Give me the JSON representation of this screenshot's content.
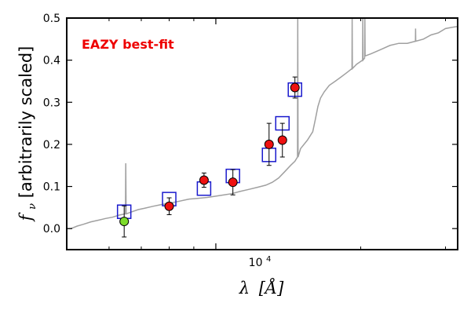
{
  "chart_data": {
    "type": "scatter",
    "annotation": {
      "text": "EAZY best-fit",
      "color": "#ee0000"
    },
    "xlabel": {
      "lambda": "λ",
      "unit": "[Å]"
    },
    "ylabel": {
      "f": "f",
      "sub": "ν",
      "rest": " [arbitrarily scaled]"
    },
    "x_scale": "log",
    "xlim": [
      4900,
      31800
    ],
    "ylim": [
      -0.05,
      0.5
    ],
    "y_ticks": [
      0.0,
      0.1,
      0.2,
      0.3,
      0.4,
      0.5
    ],
    "y_tick_labels": [
      "0.0",
      "0.1",
      "0.2",
      "0.3",
      "0.4",
      "0.5"
    ],
    "x_major_tick_label": {
      "base": "10",
      "exp": "4"
    },
    "x_major_tick": 10000,
    "x_minor_ticks": [
      6000,
      7000,
      8000,
      9000,
      20000,
      30000
    ],
    "grid": false,
    "colors": {
      "sed": "#a0a0a0",
      "model_box": "#1a1acd",
      "detection": "#ee1111",
      "low_sn": "#7ddc2a",
      "errorbar": "#000000"
    },
    "series": [
      {
        "type": "line",
        "color": "#a0a0a0",
        "points": [
          [
            4900,
            0.0
          ],
          [
            5000,
            0.0
          ],
          [
            5150,
            0.006
          ],
          [
            5300,
            0.01
          ],
          [
            5500,
            0.016
          ],
          [
            5700,
            0.02
          ],
          [
            5900,
            0.024
          ],
          [
            6100,
            0.027
          ],
          [
            6300,
            0.032
          ],
          [
            6490,
            0.035
          ],
          [
            6500,
            0.155
          ],
          [
            6510,
            0.035
          ],
          [
            6700,
            0.04
          ],
          [
            6900,
            0.045
          ],
          [
            7100,
            0.048
          ],
          [
            7400,
            0.053
          ],
          [
            7700,
            0.057
          ],
          [
            8000,
            0.06
          ],
          [
            8400,
            0.065
          ],
          [
            8800,
            0.07
          ],
          [
            9200,
            0.072
          ],
          [
            9600,
            0.074
          ],
          [
            10000,
            0.077
          ],
          [
            10400,
            0.08
          ],
          [
            10800,
            0.083
          ],
          [
            11200,
            0.088
          ],
          [
            11700,
            0.093
          ],
          [
            12200,
            0.098
          ],
          [
            12700,
            0.103
          ],
          [
            13100,
            0.11
          ],
          [
            13500,
            0.12
          ],
          [
            13900,
            0.135
          ],
          [
            14300,
            0.15
          ],
          [
            14600,
            0.16
          ],
          [
            14780,
            0.17
          ],
          [
            14800,
            0.5
          ],
          [
            14820,
            0.17
          ],
          [
            15000,
            0.19
          ],
          [
            15500,
            0.21
          ],
          [
            15900,
            0.23
          ],
          [
            16100,
            0.26
          ],
          [
            16300,
            0.29
          ],
          [
            16500,
            0.31
          ],
          [
            16800,
            0.325
          ],
          [
            17200,
            0.34
          ],
          [
            17700,
            0.35
          ],
          [
            18200,
            0.36
          ],
          [
            18700,
            0.37
          ],
          [
            19180,
            0.38
          ],
          [
            19200,
            0.5
          ],
          [
            19220,
            0.38
          ],
          [
            19600,
            0.39
          ],
          [
            20180,
            0.4
          ],
          [
            20200,
            0.5
          ],
          [
            20220,
            0.4
          ],
          [
            20380,
            0.405
          ],
          [
            20400,
            0.5
          ],
          [
            20420,
            0.41
          ],
          [
            21000,
            0.415
          ],
          [
            22000,
            0.425
          ],
          [
            23000,
            0.435
          ],
          [
            24000,
            0.44
          ],
          [
            25000,
            0.44
          ],
          [
            25980,
            0.445
          ],
          [
            26000,
            0.475
          ],
          [
            26020,
            0.445
          ],
          [
            27000,
            0.45
          ],
          [
            28000,
            0.46
          ],
          [
            29000,
            0.465
          ],
          [
            30000,
            0.475
          ],
          [
            31000,
            0.478
          ],
          [
            31800,
            0.48
          ]
        ]
      },
      {
        "type": "model_flux_boxes",
        "color": "#1a1acd",
        "points": [
          [
            6450,
            0.04
          ],
          [
            8000,
            0.07
          ],
          [
            9450,
            0.095
          ],
          [
            10850,
            0.125
          ],
          [
            12900,
            0.175
          ],
          [
            13750,
            0.25
          ],
          [
            14600,
            0.33
          ]
        ]
      },
      {
        "type": "observed_flux",
        "points": [
          {
            "x": 6450,
            "y": 0.017,
            "err": 0.037,
            "color": "#7ddc2a"
          },
          {
            "x": 8000,
            "y": 0.053,
            "err": 0.02,
            "color": "#ee1111"
          },
          {
            "x": 9450,
            "y": 0.115,
            "err": 0.017,
            "color": "#ee1111"
          },
          {
            "x": 10850,
            "y": 0.11,
            "err": 0.03,
            "color": "#ee1111"
          },
          {
            "x": 12900,
            "y": 0.2,
            "err": 0.05,
            "color": "#ee1111"
          },
          {
            "x": 13750,
            "y": 0.21,
            "err": 0.04,
            "color": "#ee1111"
          },
          {
            "x": 14600,
            "y": 0.335,
            "err": 0.025,
            "color": "#ee1111"
          }
        ]
      }
    ]
  }
}
